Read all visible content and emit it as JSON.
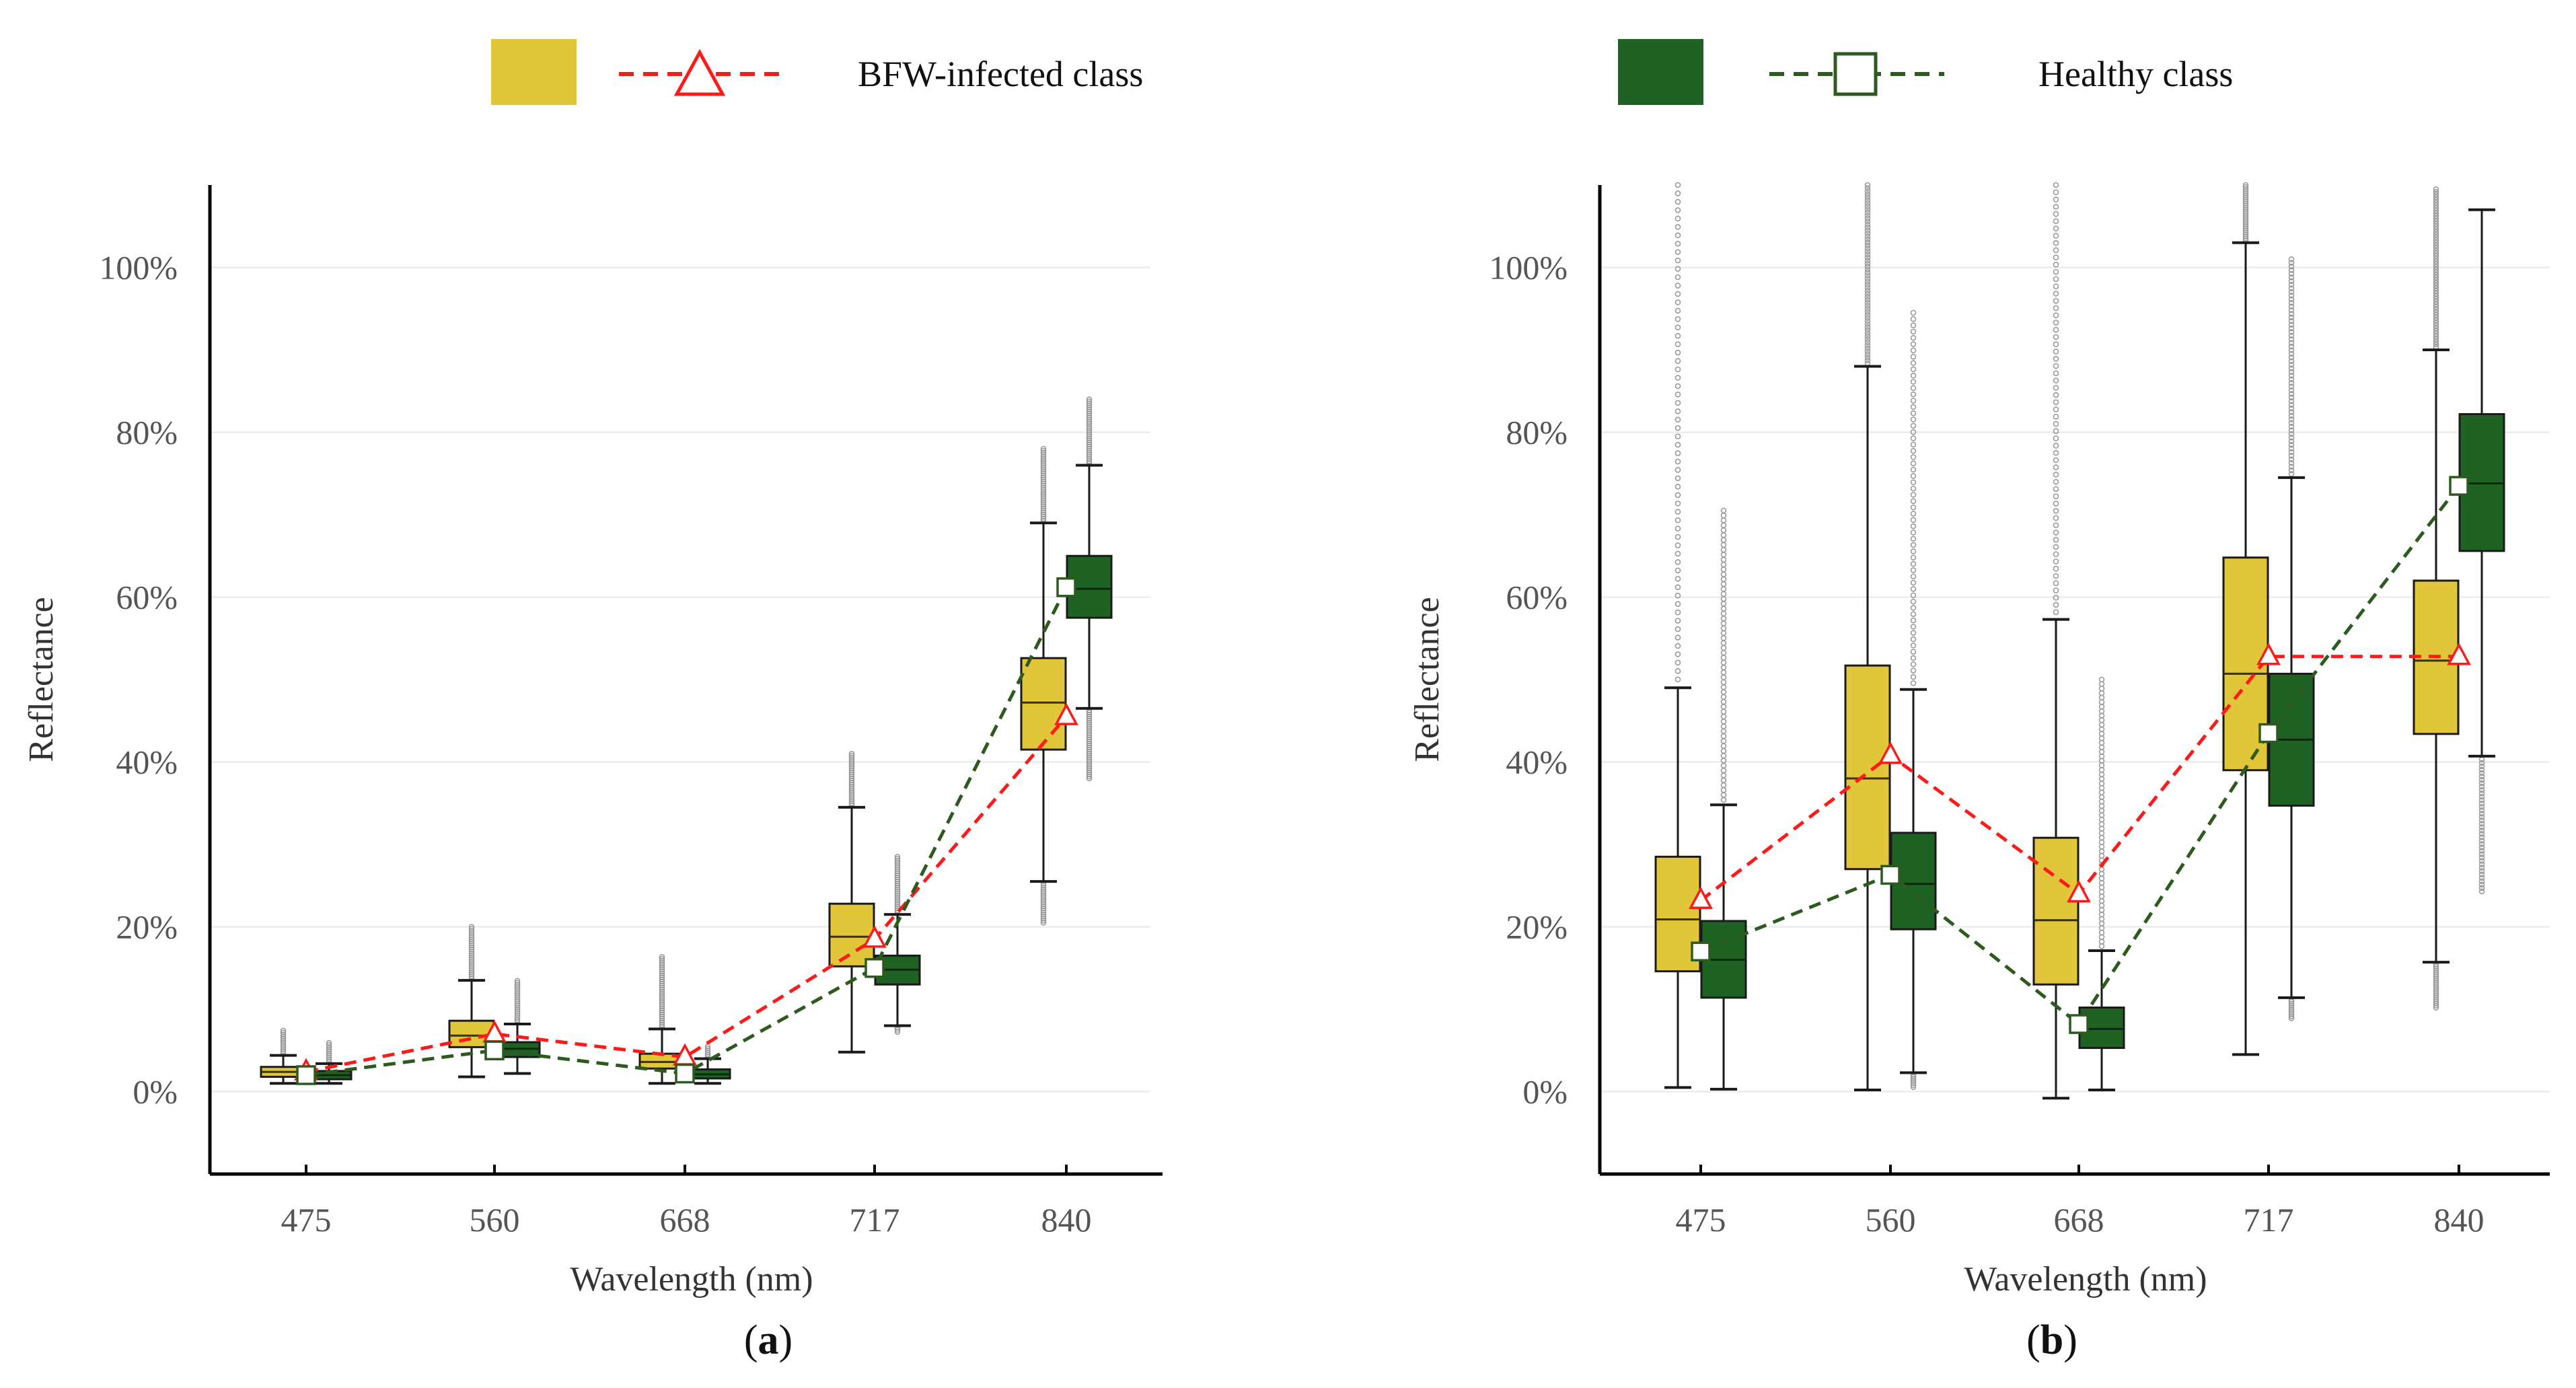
{
  "legend": {
    "infected_label": "BFW-infected class",
    "healthy_label": "Healthy class"
  },
  "colors": {
    "infected_box": "#E1C63A",
    "healthy_box": "#1E6324",
    "infected_line": "#FF1A1A",
    "healthy_line": "#2D5A1E",
    "box_edge": "#1a1a1a",
    "outlier": "#9a9a9a",
    "grid": "#e8e8e8",
    "axis": "#000000"
  },
  "chart_data": [
    {
      "type": "box",
      "panel": "a",
      "label_prefix": "(",
      "label_letter": "a",
      "label_suffix": ")",
      "xlabel": "Wavelength (nm)",
      "ylabel": "Reflectance",
      "categories": [
        "475",
        "560",
        "668",
        "717",
        "840"
      ],
      "ylim": [
        -10,
        110
      ],
      "yticks": [
        0,
        20,
        40,
        60,
        80,
        100
      ],
      "ytick_labels": [
        "0%",
        "20%",
        "40%",
        "60%",
        "80%",
        "100%"
      ],
      "grid": true,
      "series": [
        {
          "name": "BFW-infected class",
          "boxes": [
            {
              "low": 1.0,
              "q1": 1.8,
              "median": 2.4,
              "q3": 3.0,
              "high": 4.4,
              "outlier_top": 7.5,
              "outlier_bottom": null
            },
            {
              "low": 1.8,
              "q1": 5.4,
              "median": 6.8,
              "q3": 8.6,
              "high": 13.5,
              "outlier_top": 20.0,
              "outlier_bottom": null
            },
            {
              "low": 1.0,
              "q1": 2.8,
              "median": 3.6,
              "q3": 4.6,
              "high": 7.6,
              "outlier_top": 16.5,
              "outlier_bottom": null
            },
            {
              "low": 4.8,
              "q1": 15.2,
              "median": 18.8,
              "q3": 22.8,
              "high": 34.5,
              "outlier_top": 41.0,
              "outlier_bottom": null
            },
            {
              "low": 25.5,
              "q1": 41.5,
              "median": 47.2,
              "q3": 52.6,
              "high": 69.0,
              "outlier_top": 78.0,
              "outlier_bottom": 20.5
            }
          ],
          "means": [
            2.4,
            7.0,
            4.2,
            18.5,
            45.5
          ]
        },
        {
          "name": "Healthy class",
          "boxes": [
            {
              "low": 1.0,
              "q1": 1.5,
              "median": 2.0,
              "q3": 2.5,
              "high": 3.4,
              "outlier_top": 6.0,
              "outlier_bottom": null
            },
            {
              "low": 2.2,
              "q1": 4.2,
              "median": 5.2,
              "q3": 6.0,
              "high": 8.2,
              "outlier_top": 13.5,
              "outlier_bottom": null
            },
            {
              "low": 1.0,
              "q1": 1.6,
              "median": 2.1,
              "q3": 2.7,
              "high": 4.0,
              "outlier_top": 5.5,
              "outlier_bottom": null
            },
            {
              "low": 8.0,
              "q1": 13.0,
              "median": 14.8,
              "q3": 16.5,
              "high": 21.5,
              "outlier_top": 28.5,
              "outlier_bottom": 7.2
            },
            {
              "low": 46.5,
              "q1": 57.5,
              "median": 61.0,
              "q3": 65.0,
              "high": 76.0,
              "outlier_top": 84.0,
              "outlier_bottom": 38.0
            }
          ],
          "means": [
            2.0,
            5.0,
            2.2,
            15.0,
            61.2
          ]
        }
      ]
    },
    {
      "type": "box",
      "panel": "b",
      "label_prefix": "(",
      "label_letter": "b",
      "label_suffix": ")",
      "xlabel": "Wavelength (nm)",
      "ylabel": "Reflectance",
      "categories": [
        "475",
        "560",
        "668",
        "717",
        "840"
      ],
      "ylim": [
        -10,
        110
      ],
      "yticks": [
        0,
        20,
        40,
        60,
        80,
        100
      ],
      "ytick_labels": [
        "0%",
        "20%",
        "40%",
        "60%",
        "80%",
        "100%"
      ],
      "grid": true,
      "series": [
        {
          "name": "BFW-infected class",
          "boxes": [
            {
              "low": 0.5,
              "q1": 14.6,
              "median": 20.9,
              "q3": 28.5,
              "high": 49.0,
              "outlier_top": 110,
              "outlier_bottom": null
            },
            {
              "low": 0.2,
              "q1": 27.0,
              "median": 38.0,
              "q3": 51.7,
              "high": 88.0,
              "outlier_top": 110,
              "outlier_bottom": null
            },
            {
              "low": -0.8,
              "q1": 13.0,
              "median": 20.8,
              "q3": 30.8,
              "high": 57.3,
              "outlier_top": 110,
              "outlier_bottom": null
            },
            {
              "low": 4.5,
              "q1": 39.0,
              "median": 50.7,
              "q3": 64.8,
              "high": 103.0,
              "outlier_top": 110,
              "outlier_bottom": null
            },
            {
              "low": 15.7,
              "q1": 43.4,
              "median": 52.3,
              "q3": 62.0,
              "high": 90.0,
              "outlier_top": 109.5,
              "outlier_bottom": 10.0
            }
          ],
          "means": [
            23.2,
            40.8,
            24.0,
            52.8,
            52.8
          ]
        },
        {
          "name": "Healthy class",
          "boxes": [
            {
              "low": 0.3,
              "q1": 11.4,
              "median": 16.0,
              "q3": 20.7,
              "high": 34.8,
              "outlier_top": 70.5,
              "outlier_bottom": null
            },
            {
              "low": 2.3,
              "q1": 19.7,
              "median": 25.2,
              "q3": 31.4,
              "high": 48.8,
              "outlier_top": 94.5,
              "outlier_bottom": 0.5
            },
            {
              "low": 0.2,
              "q1": 5.3,
              "median": 7.6,
              "q3": 10.2,
              "high": 17.1,
              "outlier_top": 50.0,
              "outlier_bottom": null
            },
            {
              "low": 11.4,
              "q1": 34.7,
              "median": 42.7,
              "q3": 50.7,
              "high": 74.5,
              "outlier_top": 101.0,
              "outlier_bottom": 8.7
            },
            {
              "low": 40.7,
              "q1": 65.6,
              "median": 73.8,
              "q3": 82.2,
              "high": 107.0,
              "outlier_top": null,
              "outlier_bottom": 24.3
            }
          ],
          "means": [
            17.0,
            26.3,
            8.2,
            43.5,
            73.5
          ]
        }
      ]
    }
  ]
}
